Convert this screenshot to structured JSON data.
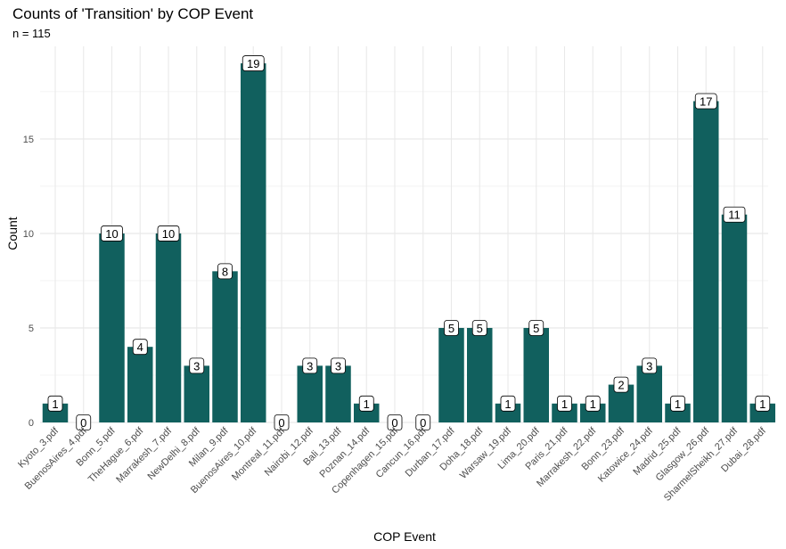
{
  "chart_data": {
    "type": "bar",
    "title": "Counts of 'Transition' by COP Event",
    "subtitle": "n = 115",
    "xlabel": "COP Event",
    "ylabel": "Count",
    "ylim": [
      0,
      19.9
    ],
    "yticks": [
      "0",
      "5",
      "10",
      "15"
    ],
    "grid": true,
    "legend": "none",
    "bar_color": "#11605e",
    "categories": [
      "Kyoto_3.pdf",
      "BuenosAires_4.pdf",
      "Bonn_5.pdf",
      "TheHague_6.pdf",
      "Marrakesh_7.pdf",
      "NewDelhi_8.pdf",
      "Milan_9.pdf",
      "BuenosAires_10.pdf",
      "Montreal_11.pdf",
      "Nairobi_12.pdf",
      "Bali_13.pdf",
      "Poznan_14.pdf",
      "Copenhagen_15.pdf",
      "Cancun_16.pdf",
      "Durban_17.pdf",
      "Doha_18.pdf",
      "Warsaw_19.pdf",
      "Lima_20.pdf",
      "Paris_21.pdf",
      "Marrakesh_22.pdf",
      "Bonn_23.pdf",
      "Katowice_24.pdf",
      "Madrid_25.pdf",
      "Glasgow_26.pdf",
      "SharmelSheikh_27.pdf",
      "Dubai_28.pdf"
    ],
    "values": [
      1,
      0,
      10,
      4,
      10,
      3,
      8,
      19,
      0,
      3,
      3,
      1,
      0,
      0,
      5,
      5,
      1,
      5,
      1,
      1,
      2,
      3,
      1,
      17,
      11,
      1
    ]
  }
}
